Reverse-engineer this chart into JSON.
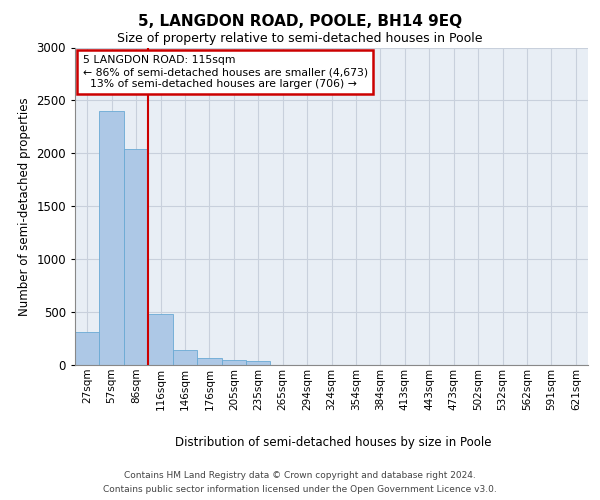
{
  "title": "5, LANGDON ROAD, POOLE, BH14 9EQ",
  "subtitle": "Size of property relative to semi-detached houses in Poole",
  "xlabel": "Distribution of semi-detached houses by size in Poole",
  "ylabel": "Number of semi-detached properties",
  "categories": [
    "27sqm",
    "57sqm",
    "86sqm",
    "116sqm",
    "146sqm",
    "176sqm",
    "205sqm",
    "235sqm",
    "265sqm",
    "294sqm",
    "324sqm",
    "354sqm",
    "384sqm",
    "413sqm",
    "443sqm",
    "473sqm",
    "502sqm",
    "532sqm",
    "562sqm",
    "591sqm",
    "621sqm"
  ],
  "values": [
    310,
    2400,
    2040,
    480,
    145,
    70,
    45,
    35,
    0,
    0,
    0,
    0,
    0,
    0,
    0,
    0,
    0,
    0,
    0,
    0,
    0
  ],
  "bar_color": "#adc8e6",
  "bar_edge_color": "#6aaad4",
  "property_line_color": "#cc0000",
  "annotation_box_edge_color": "#cc0000",
  "annotation_box_face_color": "#ffffff",
  "property_size": "115sqm",
  "pct_smaller": 86,
  "n_smaller": 4673,
  "pct_larger": 13,
  "n_larger": 706,
  "ylim": [
    0,
    3000
  ],
  "yticks": [
    0,
    500,
    1000,
    1500,
    2000,
    2500,
    3000
  ],
  "background_color": "#e8eef5",
  "grid_color": "#c8d0dc",
  "footer_line1": "Contains HM Land Registry data © Crown copyright and database right 2024.",
  "footer_line2": "Contains public sector information licensed under the Open Government Licence v3.0."
}
